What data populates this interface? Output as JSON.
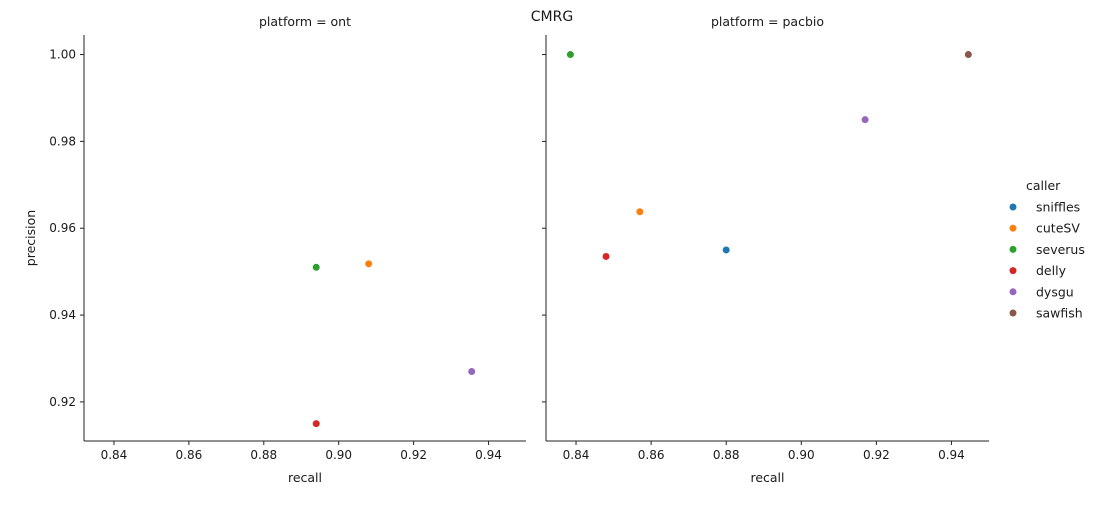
{
  "chart_data": {
    "type": "scatter",
    "title": "CMRG",
    "xlabel": "recall",
    "ylabel": "precision",
    "xlim": [
      0.832,
      0.95
    ],
    "ylim": [
      0.911,
      1.0045
    ],
    "xticks": [
      "0.84",
      "0.86",
      "0.88",
      "0.90",
      "0.92",
      "0.94"
    ],
    "yticks": [
      "0.92",
      "0.94",
      "0.96",
      "0.98",
      "1.00"
    ],
    "grid": false,
    "legend": {
      "title": "caller",
      "position": "right",
      "items": [
        {
          "name": "sniffles",
          "color": "#1f77b4"
        },
        {
          "name": "cuteSV",
          "color": "#ff7f0e"
        },
        {
          "name": "severus",
          "color": "#2ca02c"
        },
        {
          "name": "delly",
          "color": "#d62728"
        },
        {
          "name": "dysgu",
          "color": "#9467bd"
        },
        {
          "name": "sawfish",
          "color": "#8c564b"
        }
      ]
    },
    "facets": [
      {
        "title": "platform = ont",
        "points": [
          {
            "caller": "severus",
            "x": 0.894,
            "y": 0.951
          },
          {
            "caller": "cuteSV",
            "x": 0.908,
            "y": 0.9518
          },
          {
            "caller": "dysgu",
            "x": 0.9355,
            "y": 0.927
          },
          {
            "caller": "delly",
            "x": 0.894,
            "y": 0.915
          }
        ]
      },
      {
        "title": "platform = pacbio",
        "points": [
          {
            "caller": "severus",
            "x": 0.8385,
            "y": 1.0
          },
          {
            "caller": "sawfish",
            "x": 0.9445,
            "y": 1.0
          },
          {
            "caller": "dysgu",
            "x": 0.917,
            "y": 0.985
          },
          {
            "caller": "cuteSV",
            "x": 0.857,
            "y": 0.9638
          },
          {
            "caller": "sniffles",
            "x": 0.88,
            "y": 0.955
          },
          {
            "caller": "delly",
            "x": 0.848,
            "y": 0.9535
          }
        ]
      }
    ]
  }
}
